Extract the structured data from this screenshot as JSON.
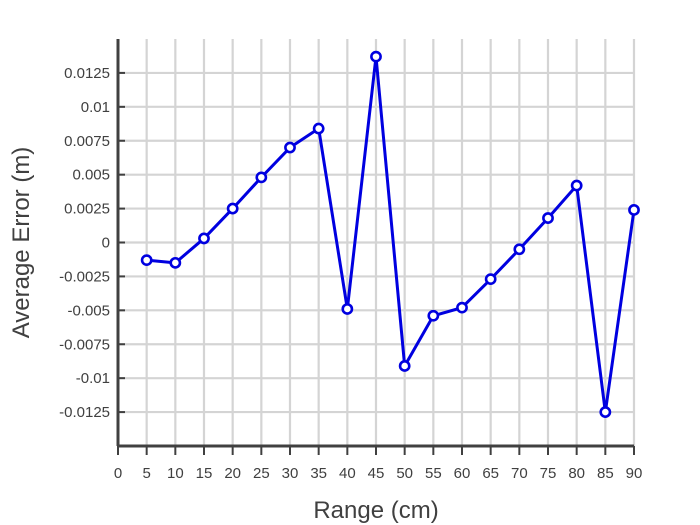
{
  "chart_data": {
    "type": "line",
    "title": "",
    "xlabel": "Range (cm)",
    "ylabel": "Average Error (m)",
    "xlim": [
      0,
      90
    ],
    "ylim": [
      -0.015,
      0.015
    ],
    "grid": true,
    "xticks": [
      0,
      5,
      10,
      15,
      20,
      25,
      30,
      35,
      40,
      45,
      50,
      55,
      60,
      65,
      70,
      75,
      80,
      85,
      90
    ],
    "xtick_labels": [
      "0",
      "5",
      "10",
      "15",
      "20",
      "25",
      "30",
      "35",
      "40",
      "45",
      "50",
      "55",
      "60",
      "65",
      "70",
      "75",
      "80",
      "85",
      "90"
    ],
    "yticks": [
      -0.0125,
      -0.01,
      -0.0075,
      -0.005,
      -0.0025,
      0,
      0.0025,
      0.005,
      0.0075,
      0.01,
      0.0125
    ],
    "ytick_labels": [
      "-0.0125",
      "-0.01",
      "-0.0075",
      "-0.005",
      "-0.0025",
      "0",
      "0.0025",
      "0.005",
      "0.0075",
      "0.01",
      "0.0125"
    ],
    "series": [
      {
        "color": "#0000e0",
        "marker": "circle",
        "x": [
          5,
          10,
          15,
          20,
          25,
          30,
          35,
          40,
          45,
          50,
          55,
          60,
          65,
          70,
          75,
          80,
          85,
          90
        ],
        "y": [
          -0.0013,
          -0.0015,
          0.0003,
          0.0025,
          0.0048,
          0.007,
          0.0084,
          -0.0049,
          0.0137,
          -0.0091,
          -0.0054,
          -0.0048,
          -0.0027,
          -0.0005,
          0.0018,
          0.0042,
          -0.0125,
          0.0024
        ]
      }
    ]
  }
}
